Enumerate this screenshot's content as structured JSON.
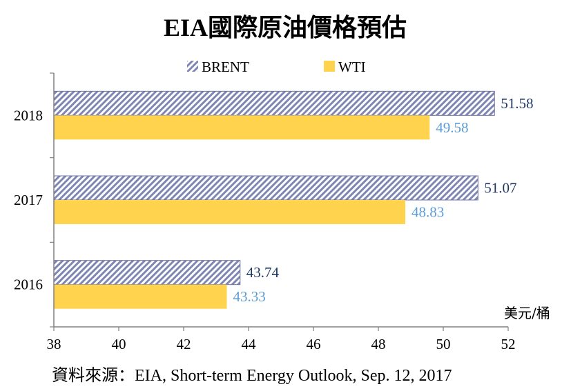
{
  "chart_data": {
    "type": "bar",
    "orientation": "horizontal",
    "title": "EIA國際原油價格預估",
    "unit_label": "美元/桶",
    "source": "資料來源：EIA, Short-term Energy Outlook, Sep. 12, 2017",
    "categories": [
      "2018",
      "2017",
      "2016"
    ],
    "series": [
      {
        "name": "BRENT",
        "values": [
          51.58,
          51.07,
          43.74
        ],
        "color": "#7f86b4",
        "pattern": "diagonal-hatch",
        "label_color": "#1f3864"
      },
      {
        "name": "WTI",
        "values": [
          49.58,
          48.83,
          43.33
        ],
        "color": "#ffd34d",
        "pattern": "solid",
        "label_color": "#5b9bd5"
      }
    ],
    "xlim": [
      38,
      52
    ],
    "xticks": [
      "38",
      "40",
      "42",
      "44",
      "46",
      "48",
      "50",
      "52"
    ],
    "value_labels": {
      "BRENT": [
        "51.58",
        "51.07",
        "43.74"
      ],
      "WTI": [
        "49.58",
        "48.83",
        "43.33"
      ]
    },
    "grid": false,
    "legend_position": "top-center"
  }
}
